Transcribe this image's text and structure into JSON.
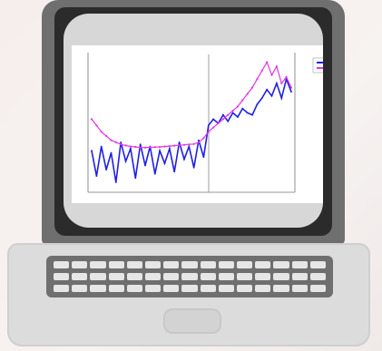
{
  "scene": {
    "subject": "laptop",
    "background_color": "#f6eeec",
    "lid_color": "#6f6f6f",
    "bezel_color": "#2b2b2b",
    "screen_color": "#d7d7d7",
    "base_color": "#dcdcdc"
  },
  "chart_data": {
    "type": "line",
    "title": "",
    "xlabel": "",
    "ylabel": "",
    "grid": false,
    "legend_position": "top-right",
    "series": [
      {
        "color": "#1f1fe6",
        "values": [
          -0.6,
          -1.8,
          -0.4,
          -1.5,
          -0.7,
          -2.1,
          -0.2,
          -1.1,
          -0.5,
          -1.9,
          -0.3,
          -1.3,
          -0.4,
          -1.7,
          -0.6,
          -1.2,
          -0.5,
          -1.6,
          -0.2,
          -1.0,
          -0.4,
          -1.4,
          -0.1,
          -0.9,
          0.6,
          0.9,
          0.7,
          1.1,
          0.8,
          1.2,
          1.0,
          1.4,
          1.2,
          1.1,
          1.6,
          1.9,
          2.3,
          2.0,
          2.6,
          1.9,
          2.8,
          2.2
        ]
      },
      {
        "color": "#e633e6",
        "values": [
          0.9,
          0.6,
          0.3,
          0.1,
          -0.1,
          -0.2,
          -0.3,
          -0.35,
          -0.4,
          -0.42,
          -0.45,
          -0.45,
          -0.44,
          -0.43,
          -0.42,
          -0.4,
          -0.38,
          -0.36,
          -0.34,
          -0.32,
          -0.3,
          -0.28,
          -0.2,
          0.0,
          0.3,
          0.5,
          0.7,
          0.9,
          1.1,
          1.3,
          1.5,
          1.8,
          2.1,
          2.4,
          2.8,
          3.2,
          3.6,
          3.0,
          3.4,
          2.6,
          2.9,
          2.4
        ]
      }
    ]
  }
}
